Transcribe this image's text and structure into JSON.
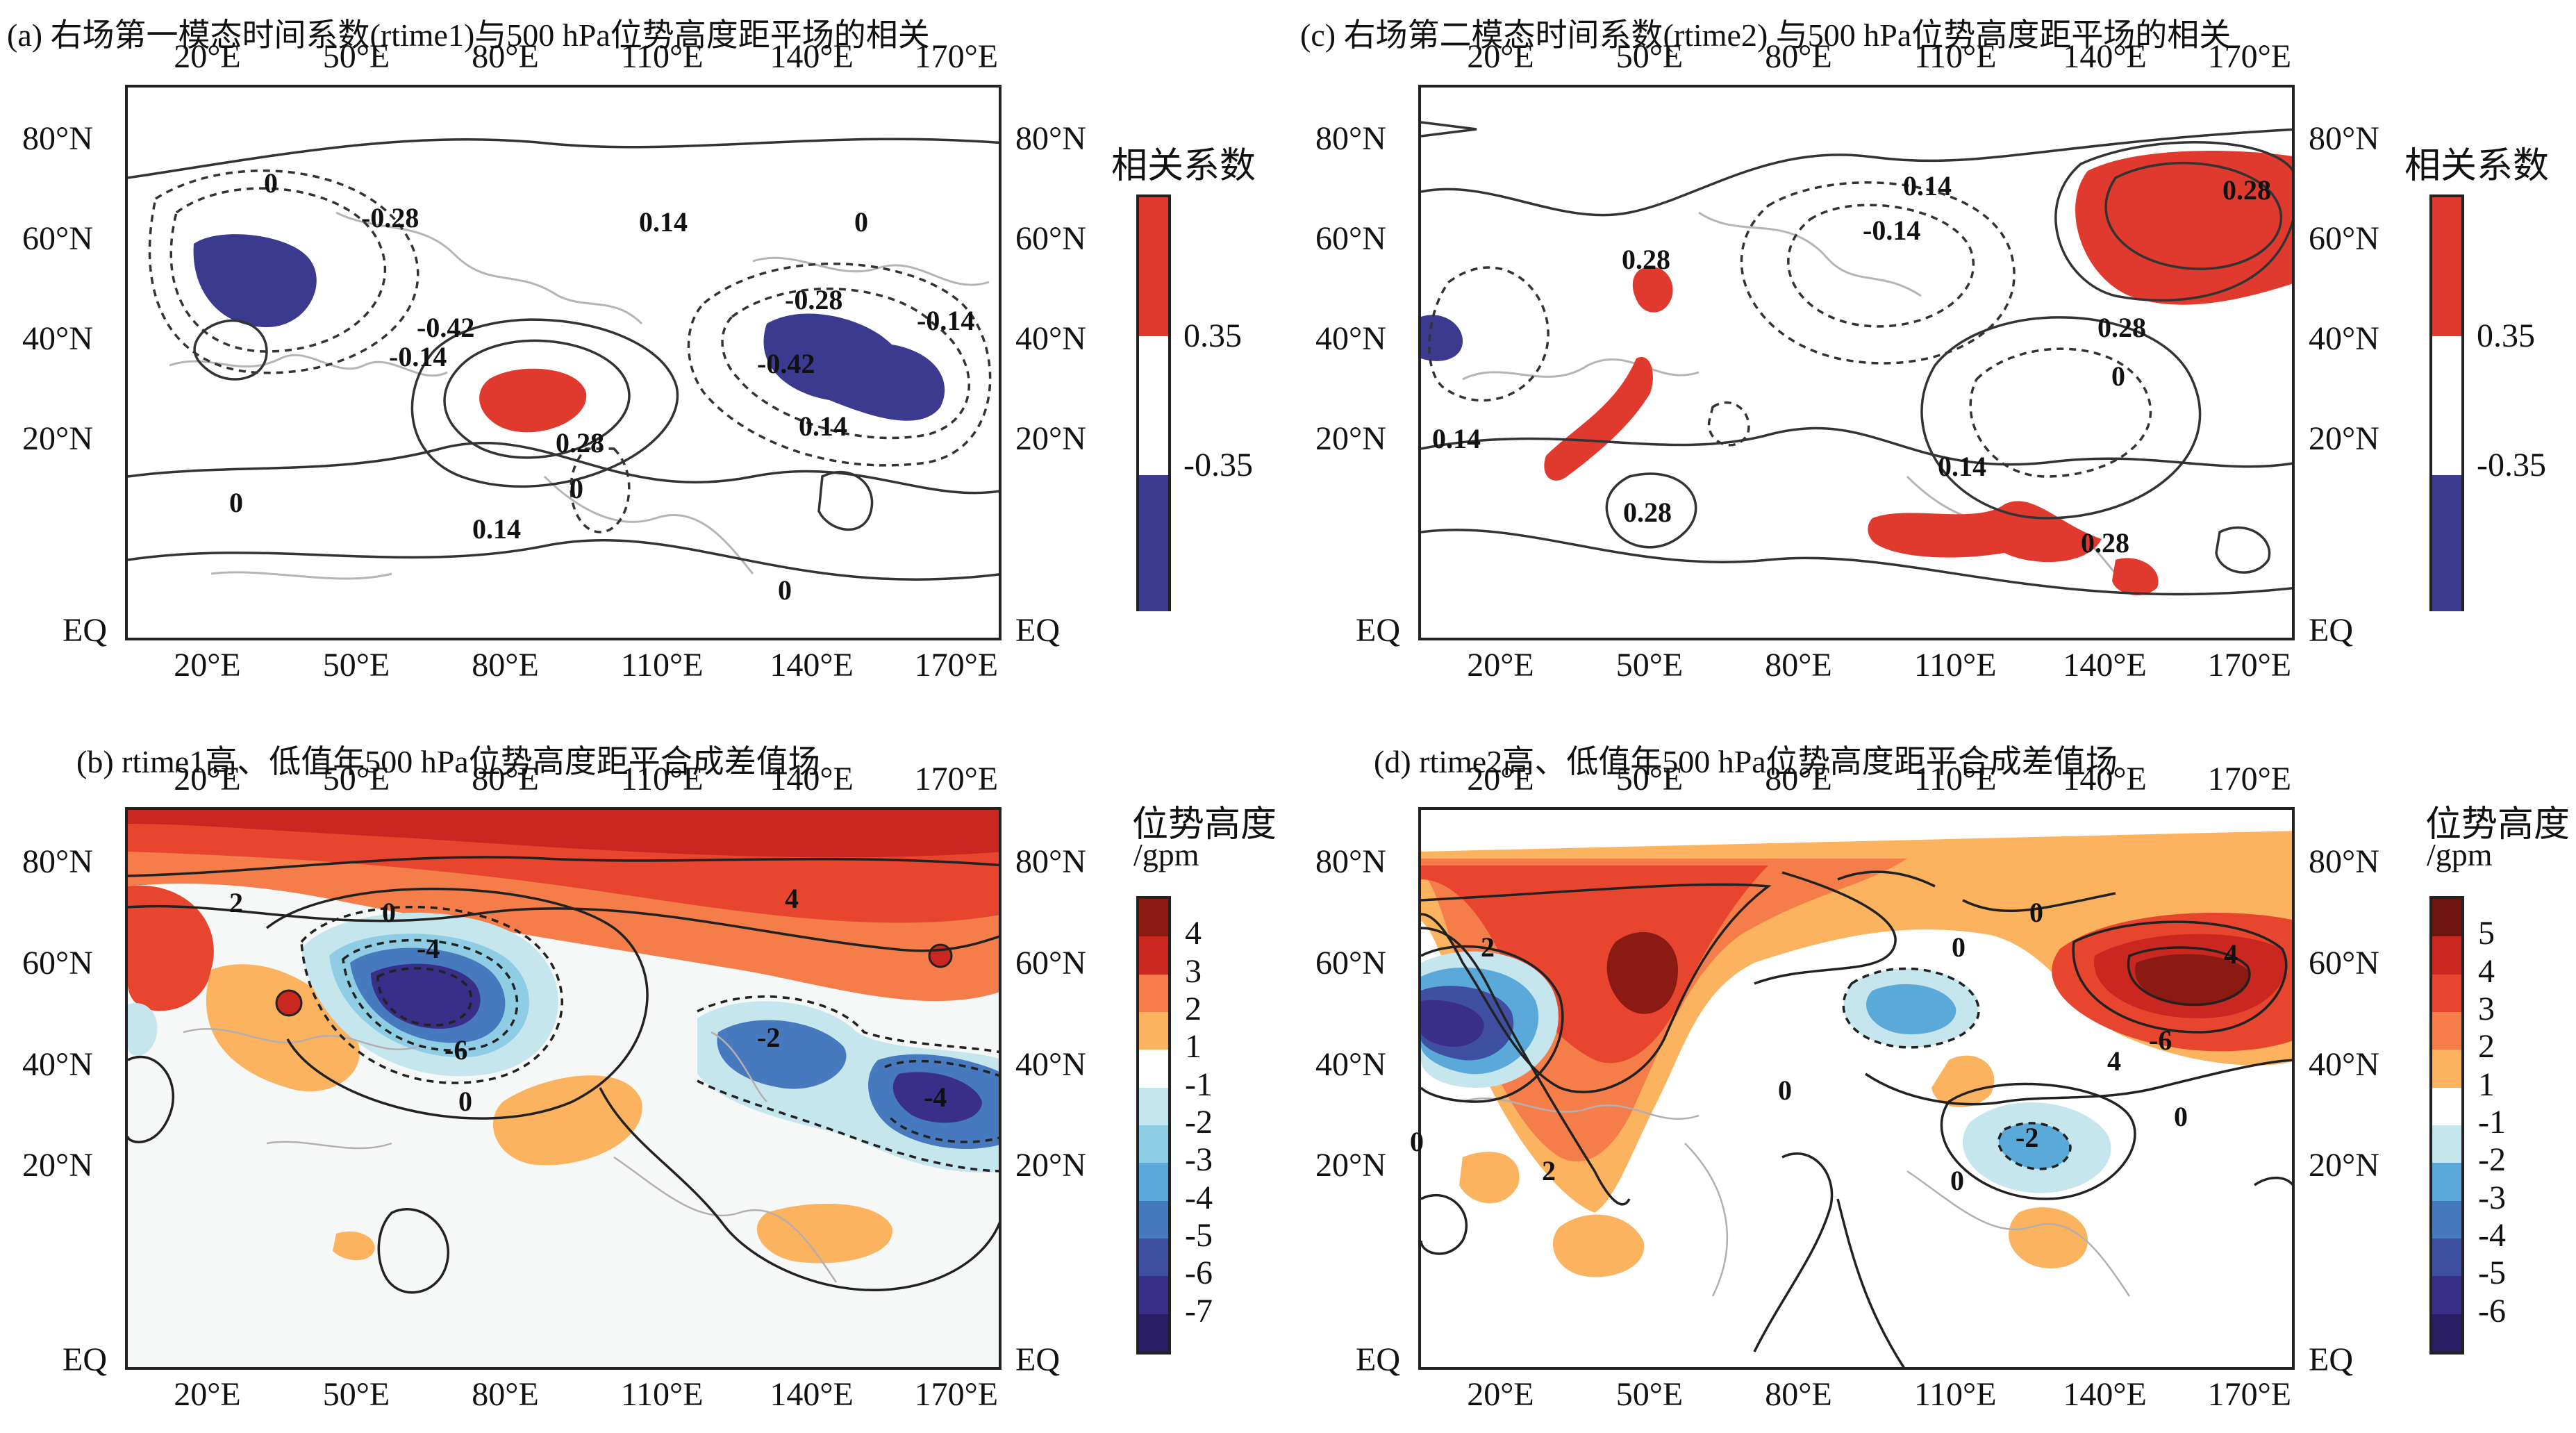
{
  "panels": {
    "a": {
      "title": "(a) 右场第一模态时间系数(rtime1)与500 hPa位势高度距平场的相关",
      "colorbar_title": "相关系数",
      "colorbar_labels": [
        "0.35",
        "-0.35"
      ],
      "contour_labels": [
        "0",
        "0.14",
        "-0.28",
        "0",
        "-0.42",
        "-0.14",
        "-0.28",
        "-0.14",
        "-0.42",
        "0.28",
        "0.14",
        "0",
        "0",
        "0.14",
        "0"
      ]
    },
    "b": {
      "title": "(b) rtime1高、低值年500 hPa位势高度距平合成差值场",
      "colorbar_title": "位势高度",
      "colorbar_unit": "/gpm",
      "colorbar_labels": [
        "4",
        "3",
        "2",
        "1",
        "-1",
        "-2",
        "-3",
        "-4",
        "-5",
        "-6",
        "-7"
      ],
      "contour_labels": [
        "2",
        "4",
        "0",
        "-4",
        "-6",
        "0",
        "-2",
        "-4"
      ]
    },
    "c": {
      "title": "(c) 右场第二模态时间系数(rtime2) 与500 hPa位势高度距平场的相关",
      "colorbar_title": "相关系数",
      "colorbar_labels": [
        "0.35",
        "-0.35"
      ],
      "contour_labels": [
        "0.14",
        "0.28",
        "-0.14",
        "0.28",
        "0.28",
        "0",
        "0.14",
        "0.14",
        "0.28",
        "0.28"
      ]
    },
    "d": {
      "title": "(d) rtime2高、低值年500 hPa位势高度距平合成差值场",
      "colorbar_title": "位势高度",
      "colorbar_unit": "/gpm",
      "colorbar_labels": [
        "5",
        "4",
        "3",
        "2",
        "1",
        "-1",
        "-2",
        "-3",
        "-4",
        "-5",
        "-6"
      ],
      "contour_labels": [
        "0",
        "2",
        "0",
        "0",
        "0",
        "4",
        "-6",
        "4",
        "0",
        "2",
        "0",
        "-2"
      ]
    }
  },
  "axes": {
    "lon_ticks": [
      "20°E",
      "50°E",
      "80°E",
      "110°E",
      "140°E",
      "170°E"
    ],
    "lat_ticks": [
      "80°N",
      "60°N",
      "40°N",
      "20°N",
      "EQ"
    ]
  },
  "colors": {
    "pos_corr": "#e03a2f",
    "neg_corr": "#3b3a8f",
    "frame": "#222222",
    "diff_pos": [
      "#fcb35f",
      "#f57d4a",
      "#e8452f",
      "#c9271f",
      "#8b1a12"
    ],
    "diff_neg": [
      "#c6e6ee",
      "#8fcde4",
      "#5aa9d9",
      "#4679bd",
      "#3f4fa2",
      "#3a2f88",
      "#2a1f66"
    ]
  }
}
